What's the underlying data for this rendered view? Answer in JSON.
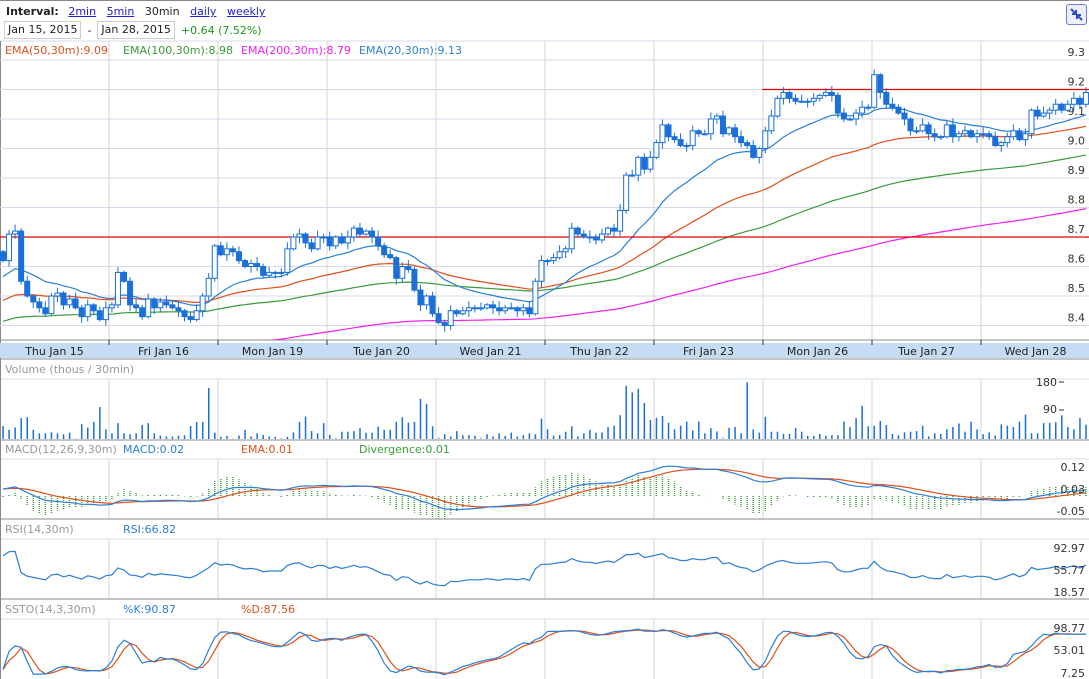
{
  "header": {
    "interval_label": "Interval:",
    "intervals": [
      {
        "label": "2min",
        "active": false
      },
      {
        "label": "5min",
        "active": false
      },
      {
        "label": "30min",
        "active": true
      },
      {
        "label": "daily",
        "active": false
      },
      {
        "label": "weekly",
        "active": false
      }
    ],
    "start_date": "Jan 15, 2015",
    "separator": "-",
    "end_date": "Jan 28, 2015",
    "change": "+0.64 (7.52%)"
  },
  "legend": {
    "ema50": "EMA(50,30m):9.09",
    "ema100": "EMA(100,30m):8.98",
    "ema200": "EMA(200,30m):8.79",
    "ema20": "EMA(20,30m):9.13"
  },
  "colors": {
    "candle": "#1a6fd8",
    "ema20": "#2a7fd8",
    "ema50": "#e0501a",
    "ema100": "#3a9a3a",
    "ema200": "#f020f0",
    "resistance": "#e00000",
    "date_bar": "#c6dcf4",
    "change": "#1a9a1a",
    "divergence": "#3aa03a"
  },
  "price_axis": [
    "9.3",
    "9.2",
    "9.1",
    "9.0",
    "8.9",
    "8.8",
    "8.7",
    "8.6",
    "8.5",
    "8.4"
  ],
  "date_axis": [
    "Thu Jan 15",
    "Fri Jan 16",
    "Mon Jan 19",
    "Tue Jan 20",
    "Wed Jan 21",
    "Thu Jan 22",
    "Fri Jan 23",
    "Mon Jan 26",
    "Tue Jan 27",
    "Wed Jan 28"
  ],
  "volume": {
    "title": "Volume (thous / 30min)",
    "ticks": [
      "180",
      "90"
    ]
  },
  "macd": {
    "title": "MACD(12,26,9,30m)",
    "macd": "MACD:0.02",
    "ema": "EMA:0.01",
    "divergence": "Divergence:0.01",
    "ticks": [
      "0.12",
      "0.03",
      "-0.05"
    ]
  },
  "rsi": {
    "title": "RSI(14,30m)",
    "value": "RSI:66.82",
    "ticks": [
      "92.97",
      "55.77",
      "18.57"
    ]
  },
  "ssto": {
    "title": "SSTO(14,3,30m)",
    "k": "%K:90.87",
    "d": "%D:87.56",
    "ticks": [
      "98.77",
      "53.01",
      "7.25"
    ]
  },
  "chart_data": {
    "type": "candlestick",
    "ylim": [
      8.37,
      9.33
    ],
    "first_open": 8.65,
    "closes": [
      8.62,
      8.71,
      8.72,
      8.55,
      8.5,
      8.48,
      8.46,
      8.44,
      8.5,
      8.51,
      8.47,
      8.49,
      8.46,
      8.43,
      8.47,
      8.45,
      8.42,
      8.46,
      8.47,
      8.58,
      8.55,
      8.47,
      8.46,
      8.43,
      8.49,
      8.46,
      8.48,
      8.47,
      8.46,
      8.45,
      8.43,
      8.42,
      8.45,
      8.5,
      8.56,
      8.67,
      8.64,
      8.66,
      8.65,
      8.62,
      8.6,
      8.61,
      8.6,
      8.57,
      8.58,
      8.58,
      8.58,
      8.66,
      8.7,
      8.71,
      8.68,
      8.66,
      8.7,
      8.7,
      8.67,
      8.7,
      8.68,
      8.7,
      8.73,
      8.71,
      8.72,
      8.7,
      8.67,
      8.64,
      8.63,
      8.56,
      8.6,
      8.59,
      8.52,
      8.47,
      8.5,
      8.44,
      8.41,
      8.4,
      8.45,
      8.44,
      8.45,
      8.46,
      8.46,
      8.46,
      8.47,
      8.46,
      8.45,
      8.46,
      8.46,
      8.45,
      8.46,
      8.44,
      8.55,
      8.62,
      8.62,
      8.63,
      8.65,
      8.66,
      8.73,
      8.71,
      8.7,
      8.7,
      8.69,
      8.71,
      8.73,
      8.72,
      8.79,
      8.91,
      8.91,
      8.97,
      8.93,
      8.97,
      9.02,
      9.08,
      9.04,
      9.03,
      9.01,
      9.01,
      9.06,
      9.05,
      9.05,
      9.1,
      9.11,
      9.05,
      9.07,
      9.04,
      9.02,
      9.01,
      8.97,
      9.0,
      9.06,
      9.11,
      9.17,
      9.19,
      9.17,
      9.16,
      9.16,
      9.16,
      9.17,
      9.18,
      9.19,
      9.18,
      9.12,
      9.1,
      9.1,
      9.12,
      9.14,
      9.14,
      9.25,
      9.19,
      9.15,
      9.14,
      9.12,
      9.1,
      9.06,
      9.06,
      9.08,
      9.05,
      9.04,
      9.04,
      9.08,
      9.04,
      9.05,
      9.06,
      9.04,
      9.05,
      9.05,
      9.04,
      9.01,
      9.02,
      9.04,
      9.06,
      9.03,
      9.05,
      9.13,
      9.11,
      9.12,
      9.13,
      9.15,
      9.13,
      9.15,
      9.17,
      9.15,
      9.19
    ],
    "volumes": [
      41,
      29,
      37,
      66,
      69,
      29,
      18,
      18,
      21,
      18,
      15,
      20,
      2,
      47,
      36,
      54,
      101,
      30,
      18,
      50,
      18,
      15,
      18,
      44,
      50,
      18,
      11,
      8,
      8,
      10,
      12,
      41,
      54,
      54,
      161,
      20,
      7,
      10,
      2,
      11,
      29,
      8,
      18,
      13,
      8,
      7,
      4,
      7,
      21,
      54,
      71,
      25,
      18,
      50,
      13,
      4,
      23,
      23,
      25,
      34,
      20,
      20,
      39,
      29,
      29,
      54,
      69,
      52,
      54,
      127,
      111,
      40,
      5,
      15,
      8,
      25,
      12,
      12,
      10,
      5,
      15,
      8,
      18,
      10,
      20,
      8,
      12,
      18,
      15,
      64,
      31,
      11,
      13,
      23,
      40,
      8,
      18,
      29,
      20,
      21,
      38,
      42,
      75,
      168,
      147,
      159,
      114,
      60,
      67,
      73,
      51,
      31,
      42,
      55,
      27,
      55,
      18,
      34,
      24,
      5,
      35,
      38,
      18,
      179,
      30,
      20,
      70,
      23,
      23,
      16,
      16,
      35,
      23,
      10,
      10,
      16,
      10,
      12,
      12,
      55,
      38,
      66,
      105,
      40,
      42,
      57,
      44,
      16,
      12,
      21,
      23,
      25,
      42,
      8,
      18,
      16,
      31,
      38,
      49,
      23,
      55,
      30,
      15,
      21,
      11,
      46,
      42,
      38,
      55,
      77,
      18,
      18,
      50,
      51,
      53,
      75,
      38,
      31,
      66,
      45
    ],
    "ema_seeds": {
      "ema20": 8.56,
      "ema50": 8.48,
      "ema100": 8.41,
      "ema200": 8.25
    },
    "macd_seeds": {
      "ema12": 8.62,
      "ema26": 8.59,
      "signal": 0.03
    },
    "rsi_seeds": {
      "avg_gain": 0.012,
      "avg_loss": 0.003
    },
    "resistance_lines": [
      {
        "price": 8.7,
        "from_bar": 0
      },
      {
        "price": 9.2,
        "from_bar": 126
      }
    ],
    "volume_range": [
      0,
      180
    ],
    "macd_range": [
      -0.05,
      0.12
    ],
    "rsi_range": [
      18.57,
      92.97
    ],
    "ssto_range": [
      7.25,
      98.77
    ]
  }
}
